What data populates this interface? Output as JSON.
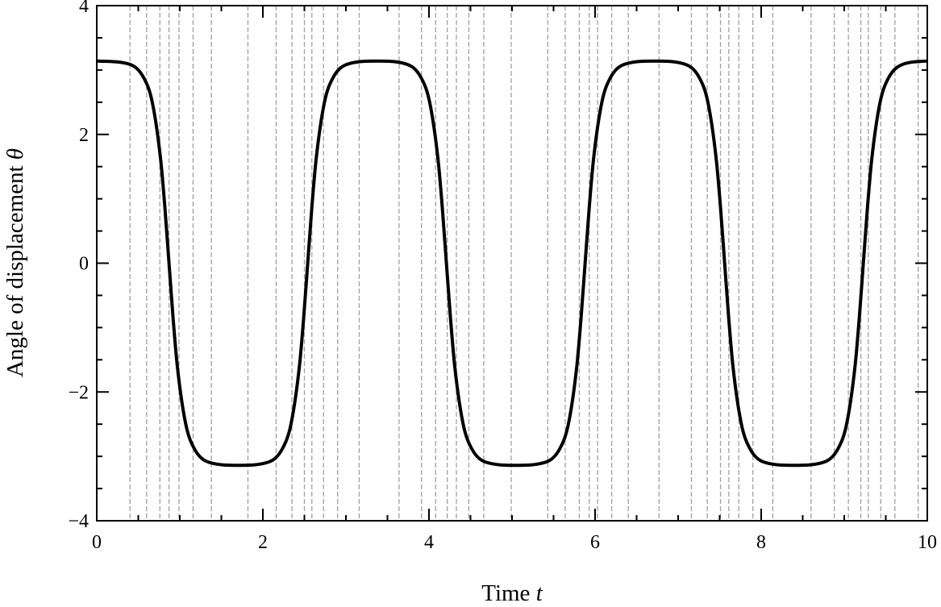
{
  "chart_data": {
    "type": "line",
    "title": "",
    "xlabel": "Time",
    "xlabel_var": "t",
    "ylabel": "Angle of displacement",
    "ylabel_var": "θ",
    "xlim": [
      0,
      10
    ],
    "ylim": [
      -4,
      4
    ],
    "xticks": [
      0,
      2,
      4,
      6,
      8,
      10
    ],
    "yticks": [
      -4,
      -2,
      0,
      2,
      4
    ],
    "xtick_labels": [
      "0",
      "2",
      "4",
      "6",
      "8",
      "10"
    ],
    "ytick_labels": [
      "−4",
      "−2",
      "0",
      "2",
      "4"
    ],
    "grid": false,
    "line_color": "#000000",
    "marker_line_color": "#a0a0a0",
    "vertical_markers": [
      0.4,
      0.6,
      0.76,
      0.87,
      0.99,
      1.16,
      1.38,
      1.82,
      2.16,
      2.35,
      2.5,
      2.59,
      2.73,
      2.9,
      3.16,
      3.64,
      3.91,
      4.08,
      4.22,
      4.33,
      4.48,
      4.66,
      4.99,
      5.43,
      5.64,
      5.81,
      5.93,
      6.03,
      6.2,
      6.4,
      6.77,
      7.16,
      7.35,
      7.51,
      7.61,
      7.73,
      7.9,
      8.14,
      8.6,
      8.88,
      9.05,
      9.2,
      9.29,
      9.44,
      9.61,
      9.89
    ],
    "series": [
      {
        "x": [
          0,
          0.37,
          0.57,
          0.67,
          0.77,
          0.82,
          0.87,
          0.92,
          0.97,
          1.07,
          1.17,
          1.37,
          1.705,
          2.04,
          2.24,
          2.34,
          2.44,
          2.49,
          2.54,
          2.59,
          2.64,
          2.74,
          2.84,
          3.04,
          3.375,
          3.71,
          3.91,
          4.01,
          4.11,
          4.16,
          4.21,
          4.26,
          4.31,
          4.41,
          4.51,
          4.71,
          5.045,
          5.38,
          5.58,
          5.68,
          5.78,
          5.83,
          5.88,
          5.93,
          5.98,
          6.08,
          6.18,
          6.38,
          6.72,
          7.06,
          7.26,
          7.36,
          7.46,
          7.51,
          7.56,
          7.61,
          7.66,
          7.76,
          7.86,
          8.06,
          8.395,
          8.73,
          8.93,
          9.03,
          9.13,
          9.18,
          9.23,
          9.28,
          9.33,
          9.43,
          9.53,
          9.73,
          10
        ],
        "y": [
          3.14,
          3.1,
          2.87,
          2.49,
          1.6,
          0.87,
          0,
          -0.87,
          -1.6,
          -2.49,
          -2.87,
          -3.1,
          -3.14,
          -3.1,
          -2.87,
          -2.49,
          -1.6,
          -0.87,
          0,
          0.87,
          1.6,
          2.49,
          2.87,
          3.1,
          3.14,
          3.1,
          2.87,
          2.49,
          1.6,
          0.87,
          0,
          -0.87,
          -1.6,
          -2.49,
          -2.87,
          -3.1,
          -3.14,
          -3.1,
          -2.87,
          -2.49,
          -1.6,
          -0.87,
          0,
          0.87,
          1.6,
          2.49,
          2.87,
          3.1,
          3.14,
          3.1,
          2.87,
          2.49,
          1.6,
          0.87,
          0,
          -0.87,
          -1.6,
          -2.49,
          -2.87,
          -3.1,
          -3.14,
          -3.1,
          -2.87,
          -2.49,
          -1.6,
          -0.87,
          0,
          0.87,
          1.6,
          2.49,
          2.87,
          3.1,
          3.14
        ]
      }
    ]
  }
}
